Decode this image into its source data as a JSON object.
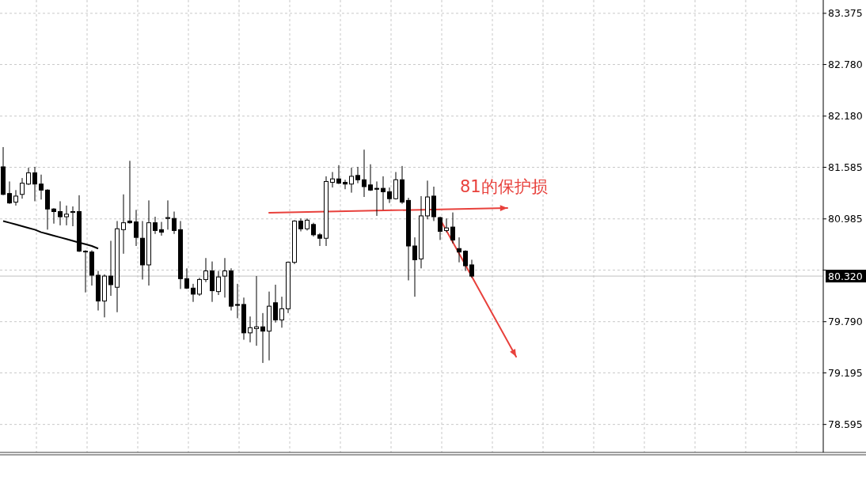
{
  "chart_data": {
    "type": "candlestick",
    "categories": [
      null,
      null,
      null,
      null,
      null,
      null,
      null,
      null,
      null,
      null,
      null,
      null,
      null,
      null,
      null,
      null,
      null,
      null,
      null,
      null,
      null,
      null,
      null,
      null,
      null,
      null,
      null,
      null,
      null,
      null,
      null,
      null,
      null,
      null,
      null,
      null,
      null,
      null,
      null,
      null,
      null,
      null,
      null,
      null,
      null,
      null,
      null,
      null,
      null,
      null,
      null,
      null,
      null,
      null,
      null,
      null,
      null,
      null,
      null,
      null,
      null,
      null,
      null,
      null,
      null,
      null,
      null,
      null,
      null,
      null,
      null,
      null,
      null,
      null,
      null,
      null,
      null,
      null,
      null,
      null,
      null,
      null,
      null,
      null,
      null,
      null,
      null,
      null,
      null,
      null,
      null,
      null,
      null,
      null,
      null,
      null,
      null,
      null,
      null,
      null,
      null,
      null,
      null,
      null,
      null,
      null,
      null,
      null,
      null,
      null,
      null,
      null,
      null,
      null,
      null,
      null,
      null,
      null,
      null,
      null,
      null,
      null,
      null,
      null,
      null,
      null,
      null,
      null,
      null,
      null
    ],
    "ohlc": [
      [
        81.59,
        81.82,
        81.26,
        81.27
      ],
      [
        81.28,
        81.42,
        81.16,
        81.17
      ],
      [
        81.18,
        81.32,
        81.14,
        81.25
      ],
      [
        81.27,
        81.46,
        81.22,
        81.4
      ],
      [
        81.39,
        81.58,
        81.38,
        81.52
      ],
      [
        81.52,
        81.59,
        81.19,
        81.39
      ],
      [
        81.39,
        81.5,
        81.21,
        81.32
      ],
      [
        81.32,
        81.33,
        80.86,
        81.1
      ],
      [
        81.1,
        81.11,
        80.93,
        81.07
      ],
      [
        81.07,
        81.19,
        80.91,
        81.01
      ],
      [
        81.01,
        81.14,
        80.91,
        81.04
      ],
      [
        81.06,
        81.13,
        80.9,
        81.07
      ],
      [
        81.07,
        81.26,
        80.6,
        80.61
      ],
      [
        80.61,
        80.62,
        80.13,
        80.61
      ],
      [
        80.6,
        80.62,
        80.21,
        80.33
      ],
      [
        80.33,
        80.38,
        79.92,
        80.03
      ],
      [
        80.03,
        80.34,
        79.84,
        80.32
      ],
      [
        80.32,
        80.73,
        80.09,
        80.22
      ],
      [
        80.19,
        80.96,
        79.9,
        80.87
      ],
      [
        80.86,
        81.27,
        80.58,
        80.94
      ],
      [
        80.96,
        81.66,
        80.93,
        80.94
      ],
      [
        80.95,
        81.09,
        80.67,
        80.77
      ],
      [
        80.76,
        80.96,
        80.28,
        80.45
      ],
      [
        80.45,
        81.2,
        80.21,
        80.94
      ],
      [
        80.94,
        81.01,
        80.81,
        80.85
      ],
      [
        80.86,
        80.95,
        80.79,
        80.83
      ],
      [
        80.99,
        81.2,
        80.86,
        81.0
      ],
      [
        80.99,
        81.07,
        80.81,
        80.85
      ],
      [
        80.86,
        80.96,
        80.17,
        80.29
      ],
      [
        80.29,
        80.41,
        80.17,
        80.18
      ],
      [
        80.18,
        80.23,
        80.02,
        80.11
      ],
      [
        80.11,
        80.3,
        80.09,
        80.28
      ],
      [
        80.28,
        80.53,
        80.25,
        80.38
      ],
      [
        80.38,
        80.49,
        80.02,
        80.15
      ],
      [
        80.14,
        80.38,
        80.1,
        80.31
      ],
      [
        80.32,
        80.53,
        80.07,
        80.38
      ],
      [
        80.38,
        80.41,
        79.92,
        79.97
      ],
      [
        79.99,
        80.23,
        79.83,
        79.98
      ],
      [
        79.99,
        80.07,
        79.58,
        79.66
      ],
      [
        79.66,
        79.85,
        79.55,
        79.72
      ],
      [
        79.71,
        80.32,
        79.51,
        79.73
      ],
      [
        79.73,
        79.89,
        79.31,
        79.68
      ],
      [
        79.68,
        80.14,
        79.34,
        79.97
      ],
      [
        80.01,
        80.22,
        79.78,
        79.81
      ],
      [
        79.81,
        80.08,
        79.72,
        79.94
      ],
      [
        79.94,
        80.49,
        79.89,
        80.48
      ],
      [
        80.48,
        80.97,
        80.46,
        80.96
      ],
      [
        80.96,
        80.99,
        80.84,
        80.87
      ],
      [
        80.87,
        80.99,
        80.85,
        80.97
      ],
      [
        80.92,
        80.94,
        80.78,
        80.8
      ],
      [
        80.8,
        80.82,
        80.67,
        80.76
      ],
      [
        80.76,
        81.48,
        80.67,
        81.42
      ],
      [
        81.41,
        81.53,
        81.35,
        81.45
      ],
      [
        81.45,
        81.61,
        81.39,
        81.4
      ],
      [
        81.41,
        81.44,
        81.33,
        81.39
      ],
      [
        81.39,
        81.58,
        81.29,
        81.48
      ],
      [
        81.49,
        81.59,
        81.4,
        81.44
      ],
      [
        81.44,
        81.79,
        81.24,
        81.36
      ],
      [
        81.38,
        81.62,
        81.31,
        81.32
      ],
      [
        81.34,
        81.42,
        81.02,
        81.33
      ],
      [
        81.34,
        81.48,
        81.09,
        81.3
      ],
      [
        81.3,
        81.35,
        81.17,
        81.22
      ],
      [
        81.22,
        81.53,
        81.21,
        81.44
      ],
      [
        81.44,
        81.6,
        81.16,
        81.18
      ],
      [
        81.2,
        81.23,
        80.27,
        80.67
      ],
      [
        80.67,
        80.77,
        80.08,
        80.51
      ],
      [
        80.52,
        81.25,
        80.41,
        81.02
      ],
      [
        81.02,
        81.43,
        80.98,
        81.24
      ],
      [
        81.25,
        81.36,
        80.96,
        81.01
      ],
      [
        81.0,
        81.01,
        80.74,
        80.84
      ],
      [
        80.85,
        80.99,
        80.83,
        80.88
      ],
      [
        80.89,
        81.06,
        80.7,
        80.74
      ],
      [
        80.64,
        80.77,
        80.48,
        80.6
      ],
      [
        80.61,
        80.62,
        80.38,
        80.44
      ],
      [
        80.45,
        80.51,
        80.3,
        80.32
      ],
      null,
      null,
      null,
      null,
      null,
      null,
      null,
      null,
      null,
      null,
      null,
      null,
      null,
      null,
      null,
      null,
      null,
      null,
      null,
      null,
      null,
      null,
      null,
      null,
      null,
      null,
      null,
      null,
      null,
      null,
      null,
      null,
      null,
      null,
      null,
      null,
      null,
      null,
      null,
      null,
      null,
      null,
      null,
      null,
      null,
      null,
      null,
      null,
      null,
      null,
      null,
      null,
      null,
      null,
      null
    ],
    "ylim": [
      78.27,
      83.53
    ],
    "yticks": [
      {
        "value": 83.375,
        "label": "83.375"
      },
      {
        "value": 82.78,
        "label": "82.780"
      },
      {
        "value": 82.18,
        "label": "82.180"
      },
      {
        "value": 81.585,
        "label": "81.585"
      },
      {
        "value": 80.985,
        "label": "80.985"
      },
      {
        "value": 80.39,
        "label": null
      },
      {
        "value": 79.79,
        "label": "79.790"
      },
      {
        "value": 79.195,
        "label": "79.195"
      },
      {
        "value": 78.595,
        "label": "78.595"
      }
    ],
    "series": [
      {
        "type": "line",
        "color": "#000000",
        "values": [
          80.96,
          80.94,
          80.92,
          80.9,
          80.88,
          80.86,
          80.83,
          80.81,
          80.79,
          80.77,
          80.75,
          80.73,
          80.71,
          80.69,
          80.67,
          80.64,
          null,
          null,
          null,
          null,
          null,
          null,
          null,
          null,
          null,
          null,
          null,
          null,
          null,
          null,
          null,
          null,
          null,
          null,
          null,
          null,
          null,
          null,
          null,
          null,
          null,
          null,
          null,
          null,
          null,
          null,
          null,
          null,
          null,
          null,
          null,
          null,
          null,
          null,
          null,
          null,
          null,
          null,
          null,
          null,
          null,
          null,
          null,
          null,
          null,
          null,
          null,
          null,
          null,
          null,
          null,
          null,
          null,
          null,
          null,
          null,
          null,
          null,
          null,
          null,
          null,
          null,
          null,
          null,
          null,
          null,
          null,
          null,
          null,
          null,
          null,
          null,
          null,
          null,
          null,
          null,
          null,
          null,
          null,
          null,
          null,
          null,
          null,
          null,
          null,
          null,
          null,
          null,
          null,
          null,
          null,
          null,
          null,
          null,
          null,
          null,
          null,
          null,
          null,
          null,
          null,
          null,
          null,
          null,
          null,
          null,
          null,
          null,
          null,
          null
        ]
      }
    ],
    "grid": true,
    "ref_lines": [
      {
        "axis": "y",
        "value": 80.32,
        "label": "80.320",
        "color": "#c0c0c0"
      }
    ],
    "annotations": [
      "81的保护损"
    ]
  }
}
